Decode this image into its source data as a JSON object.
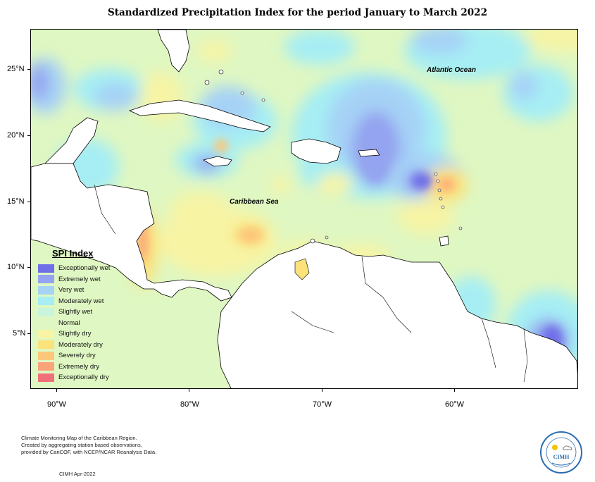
{
  "title": "Standardized Precipitation Index for the period January to March 2022",
  "map": {
    "lat_ticks": [
      "25°N",
      "20°N",
      "15°N",
      "10°N",
      "5°N"
    ],
    "lon_ticks": [
      "90°W",
      "80°W",
      "70°W",
      "60°W"
    ],
    "labels": {
      "ocean": "Atlantic Ocean",
      "sea": "Caribbean Sea"
    }
  },
  "legend": {
    "title": "SPI Index",
    "items": [
      {
        "label": "Exceptionally wet",
        "color": "#6f6fe8"
      },
      {
        "label": "Extremely wet",
        "color": "#94a4f0"
      },
      {
        "label": "Very wet",
        "color": "#a6d2f6"
      },
      {
        "label": "Moderately wet",
        "color": "#a6eef4"
      },
      {
        "label": "Slightly wet",
        "color": "#c9f5dc"
      },
      {
        "label": "Normal",
        "color": "#dff7c2"
      },
      {
        "label": "Slightly dry",
        "color": "#f7f4a4"
      },
      {
        "label": "Moderately dry",
        "color": "#fbe27a"
      },
      {
        "label": "Severely dry",
        "color": "#fcc77a"
      },
      {
        "label": "Extremely dry",
        "color": "#fba47a"
      },
      {
        "label": "Exceptionally dry",
        "color": "#f0707a"
      }
    ]
  },
  "footnote": {
    "line1": "Climate Monitoring Map of the Caribbean Region.",
    "line2": "Created by aggregating station based observations,",
    "line3": "provided by CariCOF, with NCEP/NCAR Reanalysis Data.",
    "credit": "CIMH Apr-2022"
  },
  "logo": {
    "text": "CIMH"
  }
}
